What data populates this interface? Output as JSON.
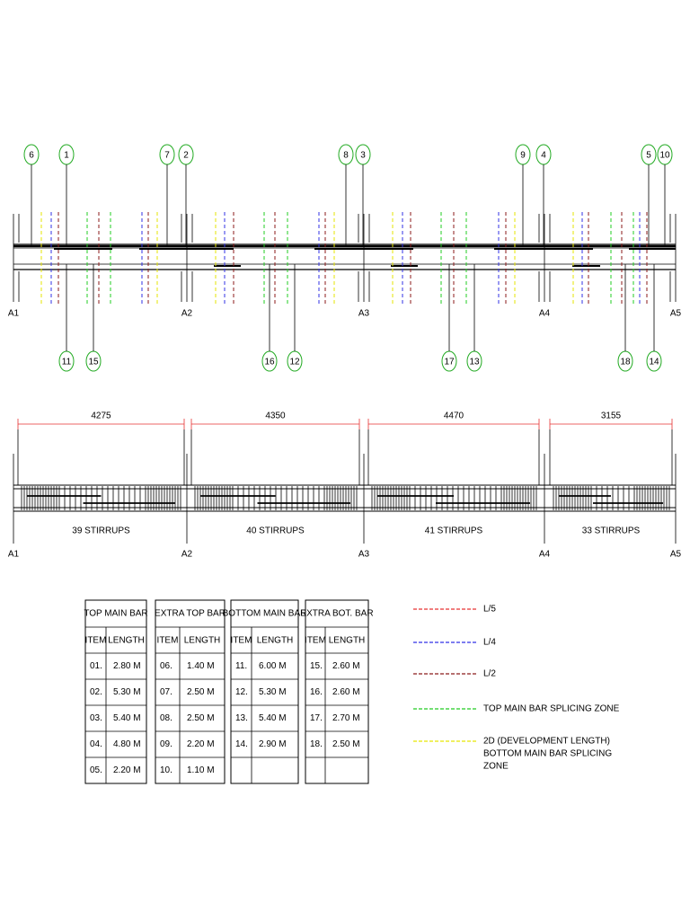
{
  "elevation": {
    "callouts_top": [
      {
        "label": "6"
      },
      {
        "label": "1"
      },
      {
        "label": "7"
      },
      {
        "label": "2"
      },
      {
        "label": "8"
      },
      {
        "label": "3"
      },
      {
        "label": "9"
      },
      {
        "label": "4"
      },
      {
        "label": "5"
      },
      {
        "label": "10"
      }
    ],
    "callouts_bottom": [
      {
        "label": "11"
      },
      {
        "label": "15"
      },
      {
        "label": "16"
      },
      {
        "label": "12"
      },
      {
        "label": "17"
      },
      {
        "label": "13"
      },
      {
        "label": "18"
      },
      {
        "label": "14"
      }
    ],
    "supports": [
      "A1",
      "A2",
      "A3",
      "A4",
      "A5"
    ]
  },
  "stirrup_elevation": {
    "dimensions": [
      4275,
      4350,
      4470,
      3155
    ],
    "stirrups": [
      "39 STIRRUPS",
      "40 STIRRUPS",
      "41 STIRRUPS",
      "33 STIRRUPS"
    ],
    "supports": [
      "A1",
      "A2",
      "A3",
      "A4",
      "A5"
    ]
  },
  "table": {
    "groups": [
      {
        "title": "TOP MAIN BAR",
        "columns": [
          "ITEM",
          "LENGTH"
        ],
        "rows": [
          [
            "01.",
            "2.80 M"
          ],
          [
            "02.",
            "5.30 M"
          ],
          [
            "03.",
            "5.40 M"
          ],
          [
            "04.",
            "4.80 M"
          ],
          [
            "05.",
            "2.20 M"
          ]
        ]
      },
      {
        "title": "EXTRA TOP BAR",
        "columns": [
          "ITEM",
          "LENGTH"
        ],
        "rows": [
          [
            "06.",
            "1.40 M"
          ],
          [
            "07.",
            "2.50 M"
          ],
          [
            "08.",
            "2.50 M"
          ],
          [
            "09.",
            "2.20 M"
          ],
          [
            "10.",
            "1.10 M"
          ]
        ]
      },
      {
        "title": "BOTTOM MAIN BAR",
        "columns": [
          "ITEM",
          "LENGTH"
        ],
        "rows": [
          [
            "11.",
            "6.00 M"
          ],
          [
            "12.",
            "5.30 M"
          ],
          [
            "13.",
            "5.40 M"
          ],
          [
            "14.",
            "2.90 M"
          ]
        ]
      },
      {
        "title": "EXTRA BOT. BAR",
        "columns": [
          "ITEM",
          "LENGTH"
        ],
        "rows": [
          [
            "15.",
            "2.60 M"
          ],
          [
            "16.",
            "2.60 M"
          ],
          [
            "17.",
            "2.70 M"
          ],
          [
            "18.",
            "2.50 M"
          ]
        ]
      }
    ]
  },
  "legend": {
    "items": [
      {
        "lines": [
          "L/5"
        ],
        "color": "#e63232"
      },
      {
        "lines": [
          "L/4"
        ],
        "color": "#3232e6"
      },
      {
        "lines": [
          "L/2"
        ],
        "color": "#8b1a1a"
      },
      {
        "lines": [
          "TOP MAIN BAR SPLICING ZONE"
        ],
        "color": "#22cc22"
      },
      {
        "lines": [
          "2D (DEVELOPMENT LENGTH)",
          "BOTTOM MAIN BAR SPLICING",
          "ZONE"
        ],
        "color": "#e6e600"
      }
    ]
  }
}
